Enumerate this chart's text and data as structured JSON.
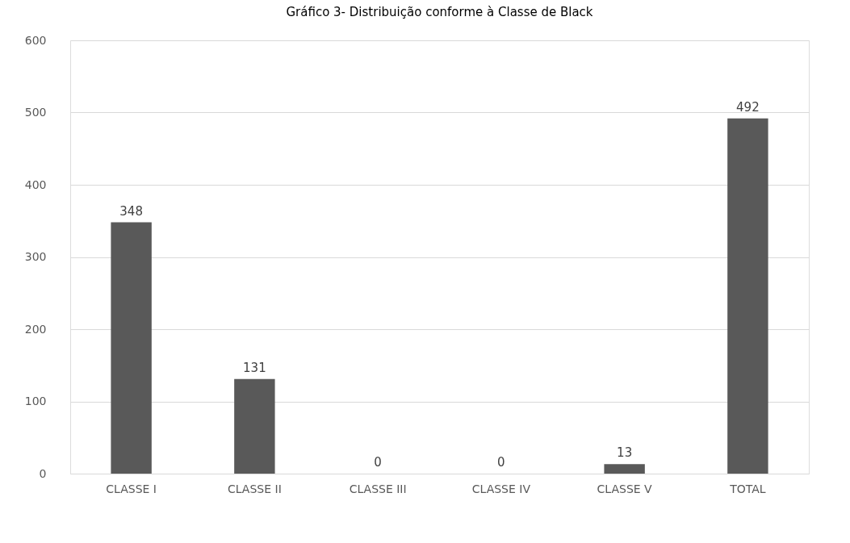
{
  "chart_data": {
    "type": "bar",
    "title": "Gráfico 3-  Distribuição conforme à Classe de Black",
    "categories": [
      "CLASSE I",
      "CLASSE II",
      "CLASSE III",
      "CLASSE IV",
      "CLASSE V",
      "TOTAL"
    ],
    "values": [
      348,
      131,
      0,
      0,
      13,
      492
    ],
    "color": "#595959",
    "ylim": [
      0,
      600
    ],
    "yticks": [
      0,
      100,
      200,
      300,
      400,
      500,
      600
    ],
    "grid": "y",
    "data_labels": true
  }
}
